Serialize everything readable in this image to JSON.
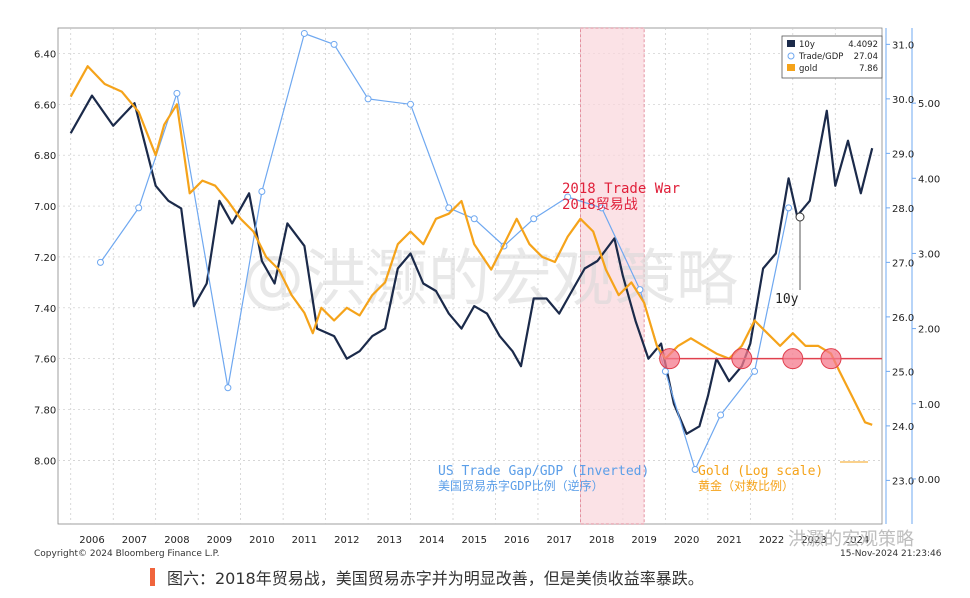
{
  "chart_data": {
    "type": "line",
    "x_years": [
      "2006",
      "2007",
      "2008",
      "2009",
      "2010",
      "2011",
      "2012",
      "2013",
      "2014",
      "2015",
      "2016",
      "2017",
      "2018",
      "2019",
      "2020",
      "2021",
      "2022",
      "2023",
      "2024"
    ],
    "left_axis": {
      "ticks": [
        "6.40",
        "6.60",
        "6.80",
        "7.00",
        "7.20",
        "7.40",
        "7.60",
        "7.80",
        "8.00"
      ],
      "ylim": [
        6.3,
        8.25
      ],
      "inverted": true
    },
    "right_axis_trade": {
      "ticks": [
        "23.0",
        "24.0",
        "25.0",
        "26.0",
        "27.0",
        "28.0",
        "29.0",
        "30.0",
        "31.0"
      ],
      "ylim": [
        22.2,
        31.3
      ]
    },
    "right_axis_10y": {
      "ticks": [
        "0.00",
        "1.00",
        "2.00",
        "3.00",
        "4.00",
        "5.00"
      ],
      "ylim": [
        -0.6,
        6.0
      ]
    },
    "legend": [
      {
        "name": "10y",
        "value": "4.4092",
        "color": "#1b2a4a"
      },
      {
        "name": "Trade/GDP",
        "value": "27.04",
        "color": "#6fa8f0"
      },
      {
        "name": "gold",
        "value": "7.86",
        "color": "#f5a31a"
      }
    ],
    "series": [
      {
        "name": "10y",
        "color": "#1b2a4a",
        "x": [
          2006.0,
          2006.5,
          2007.0,
          2007.5,
          2008.0,
          2008.3,
          2008.6,
          2008.9,
          2009.2,
          2009.5,
          2009.8,
          2010.2,
          2010.5,
          2010.8,
          2011.1,
          2011.5,
          2011.8,
          2012.2,
          2012.5,
          2012.8,
          2013.1,
          2013.4,
          2013.7,
          2014.0,
          2014.3,
          2014.6,
          2014.9,
          2015.2,
          2015.5,
          2015.8,
          2016.1,
          2016.4,
          2016.6,
          2016.9,
          2017.2,
          2017.5,
          2017.8,
          2018.1,
          2018.4,
          2018.8,
          2019.0,
          2019.3,
          2019.6,
          2019.9,
          2020.2,
          2020.5,
          2020.8,
          2021.0,
          2021.2,
          2021.5,
          2021.8,
          2022.0,
          2022.3,
          2022.6,
          2022.9,
          2023.1,
          2023.4,
          2023.8,
          2024.0,
          2024.3,
          2024.6,
          2024.87
        ],
        "y": [
          4.6,
          5.1,
          4.7,
          5.0,
          3.9,
          3.7,
          3.6,
          2.3,
          2.6,
          3.7,
          3.4,
          3.8,
          2.9,
          2.6,
          3.4,
          3.1,
          2.0,
          1.9,
          1.6,
          1.7,
          1.9,
          2.0,
          2.8,
          3.0,
          2.6,
          2.5,
          2.2,
          2.0,
          2.3,
          2.2,
          1.9,
          1.7,
          1.5,
          2.4,
          2.4,
          2.2,
          2.5,
          2.8,
          2.9,
          3.2,
          2.7,
          2.1,
          1.6,
          1.8,
          1.0,
          0.6,
          0.7,
          1.1,
          1.6,
          1.3,
          1.5,
          1.8,
          2.8,
          3.0,
          4.0,
          3.5,
          3.7,
          4.9,
          3.9,
          4.5,
          3.8,
          4.4
        ]
      },
      {
        "name": "Trade/GDP",
        "color": "#6fa8f0",
        "x": [
          2006.7,
          2007.6,
          2008.5,
          2009.7,
          2010.5,
          2011.5,
          2012.2,
          2013.0,
          2014.0,
          2014.9,
          2015.5,
          2016.2,
          2016.9,
          2017.7,
          2018.5,
          2019.4,
          2020.0,
          2020.7,
          2021.3,
          2022.1,
          2022.9
        ],
        "y": [
          27.0,
          28.0,
          30.1,
          24.7,
          28.3,
          31.2,
          31.0,
          30.0,
          29.9,
          28.0,
          27.8,
          27.3,
          27.8,
          28.2,
          28.0,
          26.5,
          25.0,
          23.2,
          24.2,
          25.0,
          28.0
        ]
      },
      {
        "name": "gold",
        "color": "#f5a31a",
        "x": [
          2006.0,
          2006.4,
          2006.8,
          2007.2,
          2007.6,
          2008.0,
          2008.2,
          2008.5,
          2008.8,
          2009.1,
          2009.4,
          2009.7,
          2010.0,
          2010.3,
          2010.6,
          2010.9,
          2011.2,
          2011.5,
          2011.7,
          2011.9,
          2012.2,
          2012.5,
          2012.8,
          2013.1,
          2013.4,
          2013.7,
          2014.0,
          2014.3,
          2014.6,
          2014.9,
          2015.2,
          2015.5,
          2015.9,
          2016.2,
          2016.5,
          2016.8,
          2017.1,
          2017.4,
          2017.7,
          2018.0,
          2018.3,
          2018.6,
          2018.9,
          2019.2,
          2019.5,
          2019.8,
          2020.0,
          2020.3,
          2020.6,
          2020.9,
          2021.2,
          2021.5,
          2021.8,
          2022.1,
          2022.4,
          2022.7,
          2023.0,
          2023.3,
          2023.6,
          2023.9,
          2024.1,
          2024.4,
          2024.7,
          2024.87
        ],
        "y": [
          6.57,
          6.45,
          6.52,
          6.55,
          6.63,
          6.8,
          6.68,
          6.6,
          6.95,
          6.9,
          6.92,
          6.98,
          7.05,
          7.1,
          7.2,
          7.25,
          7.35,
          7.42,
          7.5,
          7.4,
          7.45,
          7.4,
          7.43,
          7.35,
          7.3,
          7.15,
          7.1,
          7.15,
          7.05,
          7.03,
          6.98,
          7.15,
          7.25,
          7.15,
          7.05,
          7.15,
          7.2,
          7.22,
          7.12,
          7.05,
          7.1,
          7.25,
          7.35,
          7.3,
          7.38,
          7.55,
          7.6,
          7.55,
          7.52,
          7.55,
          7.58,
          7.6,
          7.55,
          7.45,
          7.5,
          7.55,
          7.5,
          7.55,
          7.55,
          7.58,
          7.65,
          7.75,
          7.85,
          7.86
        ]
      }
    ],
    "annotations": {
      "trade_war_line1": "2018 Trade War",
      "trade_war_line2": "2018贸易战",
      "label_10y": "10y",
      "us_trade_line1": "US Trade Gap/GDP (Inverted)",
      "us_trade_line2": "美国贸易赤字GDP比例（逆序）",
      "gold_line1": "Gold (Log scale)",
      "gold_line2": "黄金（对数比例）",
      "shaded_region": [
        2018.0,
        2019.5
      ],
      "support_level": 7.6,
      "support_circles_x": [
        2020.1,
        2021.8,
        2023.0,
        2023.9
      ]
    },
    "watermark": "@洪灏的宏观策略",
    "watermark_bottom": "洪灏的宏观策略",
    "copyright": "Copyright© 2024 Bloomberg Finance L.P.",
    "timestamp": "15-Nov-2024 21:23:46"
  },
  "caption": "图六：2018年贸易战，美国贸易赤字并为明显改善，但是美债收益率暴跌。"
}
